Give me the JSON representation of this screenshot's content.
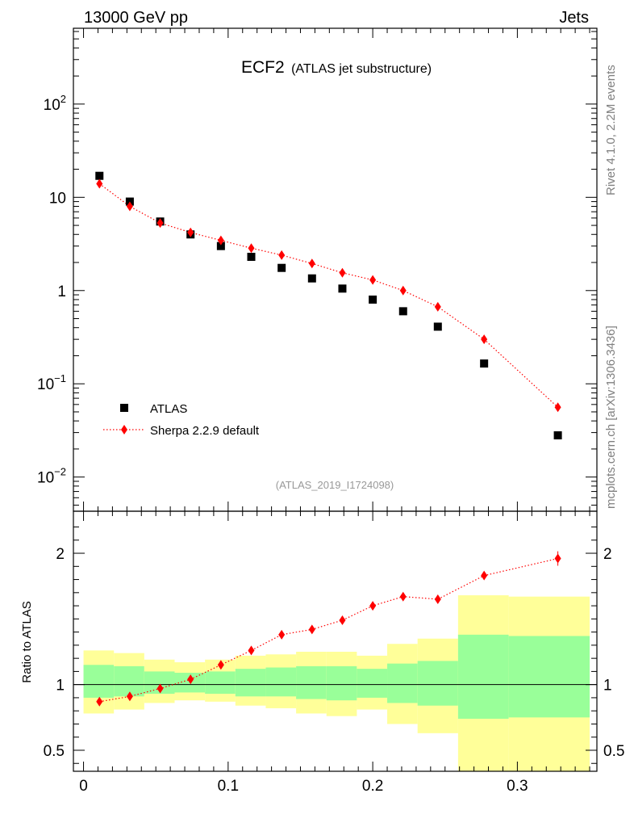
{
  "header": {
    "left": "13000 GeV pp",
    "right": "Jets"
  },
  "title": {
    "main": "ECF2",
    "sub": "(ATLAS jet substructure)"
  },
  "side_labels": {
    "top": "Rivet 4.1.0,  2.2M events",
    "bottom": "mcplots.cern.ch [arXiv:1306.3436]"
  },
  "analysis_id": "(ATLAS_2019_I1724098)",
  "ratio_ylabel": "Ratio to ATLAS",
  "colors": {
    "data": "#000000",
    "mc": "#ff0000",
    "band_inner": "#99ff99",
    "band_outer": "#ffff99",
    "analysis_text": "#999999",
    "side_text": "#808080"
  },
  "chart_data": {
    "type": "scatter",
    "x_range": [
      -0.007,
      0.355
    ],
    "x_ticks": [
      {
        "v": 0,
        "label": "0"
      },
      {
        "v": 0.1,
        "label": "0.1"
      },
      {
        "v": 0.2,
        "label": "0.2"
      },
      {
        "v": 0.3,
        "label": "0.3"
      }
    ],
    "main": {
      "yscale": "log",
      "ylim": [
        0.0043,
        650
      ],
      "y_ticks": [
        {
          "v": 0.01,
          "base": "10",
          "exp": "−2"
        },
        {
          "v": 0.1,
          "base": "10",
          "exp": "−1"
        },
        {
          "v": 1,
          "base": "1",
          "exp": ""
        },
        {
          "v": 10,
          "base": "10",
          "exp": ""
        },
        {
          "v": 100,
          "base": "10",
          "exp": "2"
        }
      ],
      "series": [
        {
          "name": "ATLAS",
          "marker": "square",
          "x": [
            0.011,
            0.032,
            0.053,
            0.074,
            0.095,
            0.116,
            0.137,
            0.158,
            0.179,
            0.2,
            0.221,
            0.245,
            0.277,
            0.328
          ],
          "y": [
            17,
            9,
            5.5,
            4.0,
            3.0,
            2.3,
            1.75,
            1.35,
            1.05,
            0.8,
            0.6,
            0.41,
            0.165,
            0.028
          ]
        },
        {
          "name": "Sherpa 2.2.9 default",
          "marker": "diamond",
          "line": "dotted",
          "x": [
            0.011,
            0.032,
            0.053,
            0.074,
            0.095,
            0.116,
            0.137,
            0.158,
            0.179,
            0.2,
            0.221,
            0.245,
            0.277,
            0.328
          ],
          "y": [
            14,
            8,
            5.3,
            4.2,
            3.45,
            2.85,
            2.4,
            1.95,
            1.55,
            1.3,
            1.0,
            0.67,
            0.3,
            0.056
          ]
        }
      ],
      "legend": "lower-left"
    },
    "ratio": {
      "yscale": "linear",
      "ylim": [
        0.34,
        2.32
      ],
      "y_ticks": [
        {
          "v": 0.5,
          "label": "0.5"
        },
        {
          "v": 1,
          "label": "1"
        },
        {
          "v": 2,
          "label": "2"
        }
      ],
      "reference_line": 1,
      "bins": [
        {
          "lo": 0.0,
          "hi": 0.021,
          "inner": [
            0.9,
            1.15
          ],
          "outer": [
            0.78,
            1.26
          ]
        },
        {
          "lo": 0.021,
          "hi": 0.042,
          "inner": [
            0.91,
            1.14
          ],
          "outer": [
            0.81,
            1.24
          ]
        },
        {
          "lo": 0.042,
          "hi": 0.063,
          "inner": [
            0.93,
            1.1
          ],
          "outer": [
            0.86,
            1.19
          ]
        },
        {
          "lo": 0.063,
          "hi": 0.084,
          "inner": [
            0.94,
            1.09
          ],
          "outer": [
            0.88,
            1.17
          ]
        },
        {
          "lo": 0.084,
          "hi": 0.105,
          "inner": [
            0.93,
            1.1
          ],
          "outer": [
            0.87,
            1.19
          ]
        },
        {
          "lo": 0.105,
          "hi": 0.126,
          "inner": [
            0.91,
            1.12
          ],
          "outer": [
            0.84,
            1.22
          ]
        },
        {
          "lo": 0.126,
          "hi": 0.147,
          "inner": [
            0.91,
            1.13
          ],
          "outer": [
            0.82,
            1.23
          ]
        },
        {
          "lo": 0.147,
          "hi": 0.168,
          "inner": [
            0.89,
            1.14
          ],
          "outer": [
            0.78,
            1.25
          ]
        },
        {
          "lo": 0.168,
          "hi": 0.189,
          "inner": [
            0.88,
            1.14
          ],
          "outer": [
            0.76,
            1.25
          ]
        },
        {
          "lo": 0.189,
          "hi": 0.21,
          "inner": [
            0.9,
            1.12
          ],
          "outer": [
            0.81,
            1.22
          ]
        },
        {
          "lo": 0.21,
          "hi": 0.231,
          "inner": [
            0.86,
            1.16
          ],
          "outer": [
            0.7,
            1.31
          ]
        },
        {
          "lo": 0.231,
          "hi": 0.259,
          "inner": [
            0.84,
            1.18
          ],
          "outer": [
            0.63,
            1.35
          ]
        },
        {
          "lo": 0.259,
          "hi": 0.294,
          "inner": [
            0.74,
            1.38
          ],
          "outer": [
            0.34,
            1.68
          ]
        },
        {
          "lo": 0.294,
          "hi": 0.35,
          "inner": [
            0.75,
            1.37
          ],
          "outer": [
            0.34,
            1.67
          ]
        }
      ],
      "series": [
        {
          "name": "Sherpa 2.2.9 default",
          "x": [
            0.011,
            0.032,
            0.053,
            0.074,
            0.095,
            0.116,
            0.137,
            0.158,
            0.179,
            0.2,
            0.221,
            0.245,
            0.277,
            0.328
          ],
          "y": [
            0.87,
            0.91,
            0.97,
            1.04,
            1.15,
            1.26,
            1.38,
            1.42,
            1.49,
            1.6,
            1.67,
            1.65,
            1.83,
            1.96
          ],
          "err": [
            0.015,
            0.015,
            0.015,
            0.015,
            0.015,
            0.015,
            0.02,
            0.02,
            0.02,
            0.02,
            0.02,
            0.02,
            0.025,
            0.055
          ]
        }
      ]
    }
  }
}
